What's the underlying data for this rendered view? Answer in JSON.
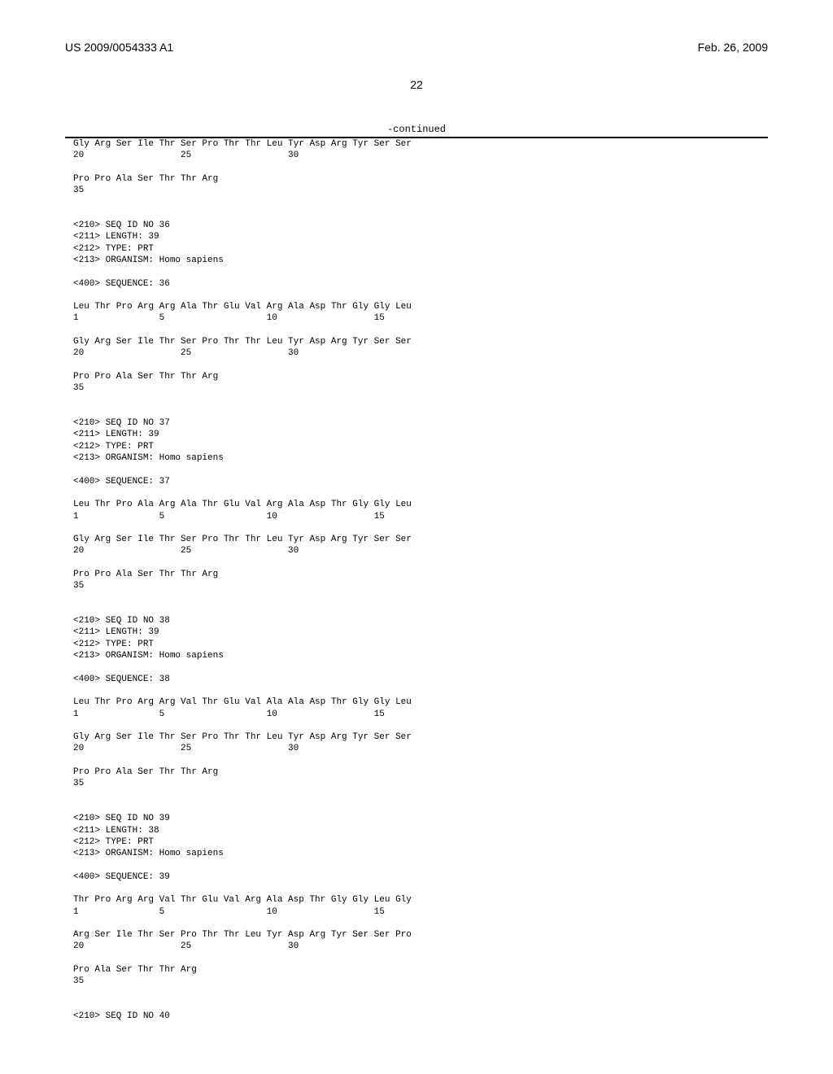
{
  "header": {
    "pubNumber": "US 2009/0054333 A1",
    "pubDate": "Feb. 26, 2009"
  },
  "pageNumber": "22",
  "continuedLabel": "-continued",
  "sequences": {
    "block1": "Gly Arg Ser Ile Thr Ser Pro Thr Thr Leu Tyr Asp Arg Tyr Ser Ser\n20                  25                  30\n\nPro Pro Ala Ser Thr Thr Arg\n35\n\n\n<210> SEQ ID NO 36\n<211> LENGTH: 39\n<212> TYPE: PRT\n<213> ORGANISM: Homo sapiens\n\n<400> SEQUENCE: 36\n\nLeu Thr Pro Arg Arg Ala Thr Glu Val Arg Ala Asp Thr Gly Gly Leu\n1               5                   10                  15\n\nGly Arg Ser Ile Thr Ser Pro Thr Thr Leu Tyr Asp Arg Tyr Ser Ser\n20                  25                  30\n\nPro Pro Ala Ser Thr Thr Arg\n35\n\n\n<210> SEQ ID NO 37\n<211> LENGTH: 39\n<212> TYPE: PRT\n<213> ORGANISM: Homo sapiens\n\n<400> SEQUENCE: 37\n\nLeu Thr Pro Ala Arg Ala Thr Glu Val Arg Ala Asp Thr Gly Gly Leu\n1               5                   10                  15\n\nGly Arg Ser Ile Thr Ser Pro Thr Thr Leu Tyr Asp Arg Tyr Ser Ser\n20                  25                  30\n\nPro Pro Ala Ser Thr Thr Arg\n35\n\n\n<210> SEQ ID NO 38\n<211> LENGTH: 39\n<212> TYPE: PRT\n<213> ORGANISM: Homo sapiens\n\n<400> SEQUENCE: 38\n\nLeu Thr Pro Arg Arg Val Thr Glu Val Ala Ala Asp Thr Gly Gly Leu\n1               5                   10                  15\n\nGly Arg Ser Ile Thr Ser Pro Thr Thr Leu Tyr Asp Arg Tyr Ser Ser\n20                  25                  30\n\nPro Pro Ala Ser Thr Thr Arg\n35\n\n\n<210> SEQ ID NO 39\n<211> LENGTH: 38\n<212> TYPE: PRT\n<213> ORGANISM: Homo sapiens\n\n<400> SEQUENCE: 39\n\nThr Pro Arg Arg Val Thr Glu Val Arg Ala Asp Thr Gly Gly Leu Gly\n1               5                   10                  15\n\nArg Ser Ile Thr Ser Pro Thr Thr Leu Tyr Asp Arg Tyr Ser Ser Pro\n20                  25                  30\n\nPro Ala Ser Thr Thr Arg\n35\n\n\n<210> SEQ ID NO 40"
  },
  "style": {
    "fontFamily": "Courier New",
    "fontSize": 11,
    "textColor": "#000000",
    "backgroundColor": "#ffffff",
    "ruleColor": "#000000"
  }
}
